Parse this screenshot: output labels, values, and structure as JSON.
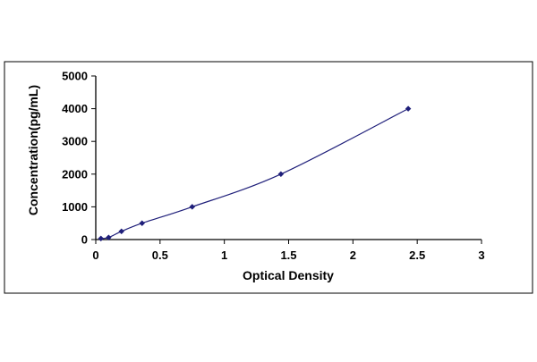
{
  "chart_data": {
    "type": "scatter",
    "title": "",
    "xlabel": "Optical Density",
    "ylabel": "Concentration(pg/mL)",
    "xlim": [
      0,
      3
    ],
    "ylim": [
      0,
      5000
    ],
    "x_ticks": [
      0,
      0.5,
      1,
      1.5,
      2,
      2.5,
      3
    ],
    "x_tick_labels": [
      "0",
      "0.5",
      "1",
      "1.5",
      "2",
      "2.5",
      "3"
    ],
    "y_ticks": [
      0,
      1000,
      2000,
      3000,
      4000,
      5000
    ],
    "y_tick_labels": [
      "0",
      "1000",
      "2000",
      "3000",
      "4000",
      "5000"
    ],
    "grid": false,
    "legend": false,
    "series": [
      {
        "markers": "diamond",
        "trendline": "smooth",
        "points": [
          {
            "x": 0.04,
            "y": 31.25
          },
          {
            "x": 0.1,
            "y": 62.5
          },
          {
            "x": 0.2,
            "y": 250
          },
          {
            "x": 0.36,
            "y": 500
          },
          {
            "x": 0.75,
            "y": 1000
          },
          {
            "x": 1.44,
            "y": 2000
          },
          {
            "x": 2.43,
            "y": 4000
          }
        ]
      }
    ],
    "colors": {
      "marker": "#1f1f7a",
      "line": "#1f1f7a",
      "axis": "#000000",
      "frame": "#000000",
      "background": "#ffffff"
    }
  }
}
